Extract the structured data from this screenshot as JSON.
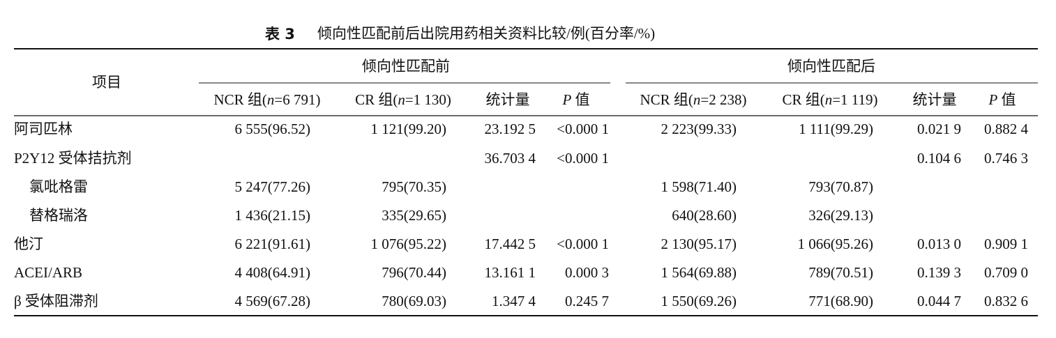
{
  "table": {
    "title": {
      "label": "表 3",
      "text": "倾向性匹配前后出院用药相关资料比较/例(百分率/%)"
    },
    "row_header": "项目",
    "groups": [
      "倾向性匹配前",
      "倾向性匹配后"
    ],
    "columns": [
      {
        "pre": "NCR 组(",
        "var": "n",
        "post": "=6 791)"
      },
      {
        "pre": "CR 组(",
        "var": "n",
        "post": "=1 130)"
      },
      {
        "pre": "统计量"
      },
      {
        "var": "P",
        "post": " 值"
      },
      {
        "pre": "NCR 组(",
        "var": "n",
        "post": "=2 238)"
      },
      {
        "pre": "CR 组(",
        "var": "n",
        "post": "=1 119)"
      },
      {
        "pre": "统计量"
      },
      {
        "var": "P",
        "post": " 值"
      }
    ],
    "rows": [
      {
        "label": "阿司匹林",
        "indent": false,
        "cells": [
          "6 555(96.52)",
          "1 121(99.20)",
          "23.192 5",
          "<0.000 1",
          "2 223(99.33)",
          "1 111(99.29)",
          "0.021 9",
          "0.882 4"
        ]
      },
      {
        "label": "P2Y12 受体拮抗剂",
        "indent": false,
        "cells": [
          null,
          null,
          "36.703 4",
          "<0.000 1",
          null,
          null,
          "0.104 6",
          "0.746 3"
        ]
      },
      {
        "label": "氯吡格雷",
        "indent": true,
        "cells": [
          "5 247(77.26)",
          "795(70.35)",
          null,
          null,
          "1 598(71.40)",
          "793(70.87)",
          null,
          null
        ]
      },
      {
        "label": "替格瑞洛",
        "indent": true,
        "cells": [
          "1 436(21.15)",
          "335(29.65)",
          null,
          null,
          "640(28.60)",
          "326(29.13)",
          null,
          null
        ]
      },
      {
        "label": "他汀",
        "indent": false,
        "cells": [
          "6 221(91.61)",
          "1 076(95.22)",
          "17.442 5",
          "<0.000 1",
          "2 130(95.17)",
          "1 066(95.26)",
          "0.013 0",
          "0.909 1"
        ]
      },
      {
        "label": "ACEI/ARB",
        "indent": false,
        "cells": [
          "4 408(64.91)",
          "796(70.44)",
          "13.161 1",
          "0.000 3",
          "1 564(69.88)",
          "789(70.51)",
          "0.139 3",
          "0.709 0"
        ]
      },
      {
        "label": "β 受体阻滞剂",
        "indent": false,
        "cells": [
          "4 569(67.28)",
          "780(69.03)",
          "1.347 4",
          "0.245 7",
          "1 550(69.26)",
          "771(68.90)",
          "0.044 7",
          "0.832 6"
        ]
      }
    ]
  }
}
